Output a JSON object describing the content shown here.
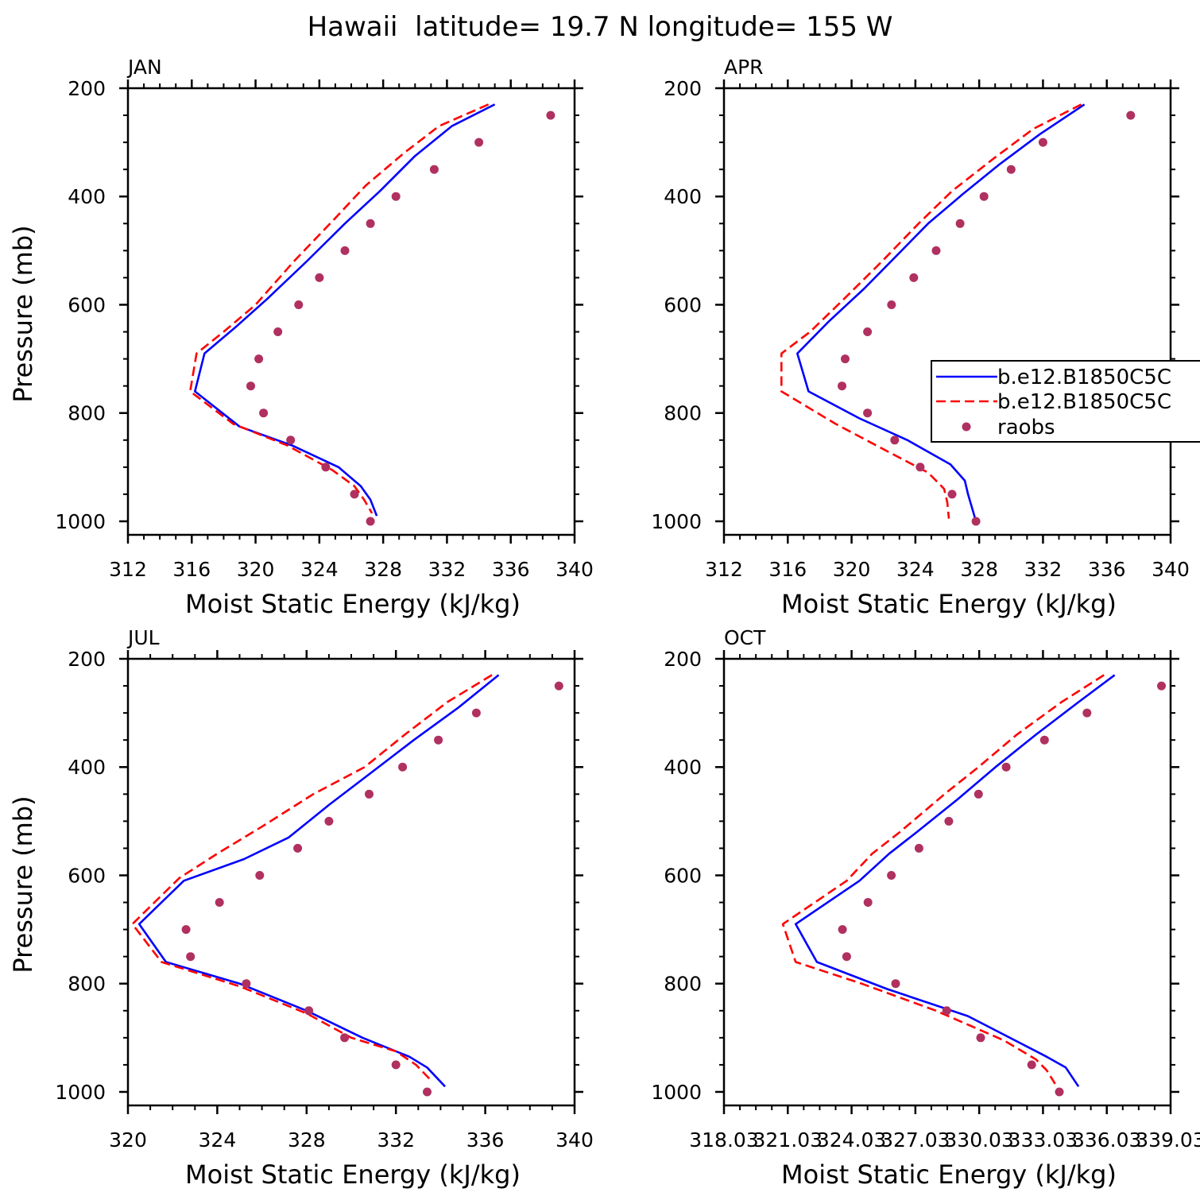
{
  "title": "Hawaii  latitude= 19.7 N longitude= 155 W",
  "colors": {
    "series1": "#0000ff",
    "series2": "#ff0000",
    "raobs": "#b03060"
  },
  "legend": {
    "location": "right edge of APR panel",
    "entries": [
      "b.e12.B1850C5C",
      "b.e12.B1850C5C",
      "raobs"
    ]
  },
  "chart_data": [
    {
      "type": "line",
      "panel": "JAN",
      "xlabel": "Moist Static Energy (kJ/kg)",
      "ylabel": "Pressure (mb)",
      "xlim": [
        312,
        340
      ],
      "ylim": [
        1025,
        200
      ],
      "y_inverted": true,
      "xticks": [
        "312",
        "316",
        "320",
        "324",
        "328",
        "332",
        "336",
        "340"
      ],
      "yticks": [
        "200",
        "400",
        "600",
        "800",
        "1000"
      ],
      "series": [
        {
          "name": "b.e12.B1850C5C",
          "style": "solid",
          "points": [
            [
              335.0,
              230
            ],
            [
              332.3,
              270
            ],
            [
              330.0,
              325
            ],
            [
              327.8,
              390
            ],
            [
              325.6,
              450
            ],
            [
              323.2,
              520
            ],
            [
              320.7,
              590
            ],
            [
              318.8,
              640
            ],
            [
              316.8,
              690
            ],
            [
              316.2,
              760
            ],
            [
              319.0,
              825
            ],
            [
              322.3,
              860
            ],
            [
              325.2,
              900
            ],
            [
              326.6,
              935
            ],
            [
              327.2,
              960
            ],
            [
              327.6,
              990
            ]
          ]
        },
        {
          "name": "b.e12.B1850C5C",
          "style": "dashed",
          "points": [
            [
              334.6,
              230
            ],
            [
              331.5,
              270
            ],
            [
              329.3,
              320
            ],
            [
              326.9,
              380
            ],
            [
              325.0,
              440
            ],
            [
              322.4,
              520
            ],
            [
              320.0,
              600
            ],
            [
              318.0,
              650
            ],
            [
              316.3,
              690
            ],
            [
              315.9,
              760
            ],
            [
              318.6,
              820
            ],
            [
              322.0,
              860
            ],
            [
              324.8,
              905
            ],
            [
              326.2,
              935
            ],
            [
              326.8,
              960
            ],
            [
              327.3,
              985
            ]
          ]
        },
        {
          "name": "raobs",
          "style": "dots",
          "points": [
            [
              338.5,
              250
            ],
            [
              334.0,
              300
            ],
            [
              331.2,
              350
            ],
            [
              328.8,
              400
            ],
            [
              327.2,
              450
            ],
            [
              325.6,
              500
            ],
            [
              324.0,
              550
            ],
            [
              322.7,
              600
            ],
            [
              321.4,
              650
            ],
            [
              320.2,
              700
            ],
            [
              319.7,
              750
            ],
            [
              320.5,
              800
            ],
            [
              322.2,
              850
            ],
            [
              324.4,
              900
            ],
            [
              326.2,
              950
            ],
            [
              327.2,
              1000
            ]
          ]
        }
      ]
    },
    {
      "type": "line",
      "panel": "APR",
      "xlabel": "Moist Static Energy (kJ/kg)",
      "ylabel": "",
      "xlim": [
        312,
        340
      ],
      "ylim": [
        1025,
        200
      ],
      "y_inverted": true,
      "xticks": [
        "312",
        "316",
        "320",
        "324",
        "328",
        "332",
        "336",
        "340"
      ],
      "yticks": [
        "200",
        "400",
        "600",
        "800",
        "1000"
      ],
      "series": [
        {
          "name": "b.e12.B1850C5C",
          "style": "solid",
          "points": [
            [
              334.6,
              230
            ],
            [
              331.8,
              285
            ],
            [
              329.3,
              340
            ],
            [
              327.0,
              395
            ],
            [
              324.8,
              450
            ],
            [
              322.8,
              510
            ],
            [
              320.8,
              570
            ],
            [
              318.6,
              630
            ],
            [
              316.6,
              690
            ],
            [
              317.3,
              760
            ],
            [
              320.5,
              810
            ],
            [
              323.5,
              850
            ],
            [
              326.2,
              895
            ],
            [
              327.1,
              925
            ],
            [
              327.3,
              950
            ],
            [
              327.8,
              1000
            ]
          ]
        },
        {
          "name": "b.e12.B1850C5C",
          "style": "dashed",
          "points": [
            [
              334.4,
              230
            ],
            [
              331.4,
              275
            ],
            [
              328.9,
              330
            ],
            [
              326.3,
              390
            ],
            [
              324.2,
              450
            ],
            [
              321.9,
              520
            ],
            [
              319.5,
              590
            ],
            [
              317.4,
              650
            ],
            [
              315.6,
              690
            ],
            [
              315.6,
              760
            ],
            [
              319.0,
              820
            ],
            [
              322.2,
              870
            ],
            [
              324.8,
              910
            ],
            [
              325.8,
              940
            ],
            [
              326.0,
              965
            ],
            [
              326.1,
              995
            ]
          ]
        },
        {
          "name": "raobs",
          "style": "dots",
          "points": [
            [
              337.5,
              250
            ],
            [
              332.0,
              300
            ],
            [
              330.0,
              350
            ],
            [
              328.3,
              400
            ],
            [
              326.8,
              450
            ],
            [
              325.3,
              500
            ],
            [
              323.9,
              550
            ],
            [
              322.5,
              600
            ],
            [
              321.0,
              650
            ],
            [
              319.6,
              700
            ],
            [
              319.4,
              750
            ],
            [
              321.0,
              800
            ],
            [
              322.7,
              850
            ],
            [
              324.3,
              900
            ],
            [
              326.3,
              950
            ],
            [
              327.8,
              1000
            ]
          ]
        }
      ]
    },
    {
      "type": "line",
      "panel": "JUL",
      "xlabel": "Moist Static Energy (kJ/kg)",
      "ylabel": "Pressure (mb)",
      "xlim": [
        320,
        340
      ],
      "ylim": [
        1025,
        200
      ],
      "y_inverted": true,
      "xticks": [
        "320",
        "324",
        "328",
        "332",
        "336",
        "340"
      ],
      "yticks": [
        "200",
        "400",
        "600",
        "800",
        "1000"
      ],
      "series": [
        {
          "name": "b.e12.B1850C5C",
          "style": "solid",
          "points": [
            [
              336.6,
              230
            ],
            [
              334.8,
              290
            ],
            [
              332.8,
              350
            ],
            [
              330.9,
              410
            ],
            [
              329.0,
              470
            ],
            [
              327.2,
              530
            ],
            [
              325.2,
              570
            ],
            [
              322.5,
              610
            ],
            [
              320.5,
              690
            ],
            [
              321.7,
              760
            ],
            [
              325.0,
              800
            ],
            [
              328.0,
              850
            ],
            [
              330.5,
              900
            ],
            [
              332.6,
              935
            ],
            [
              333.4,
              955
            ],
            [
              334.2,
              990
            ]
          ]
        },
        {
          "name": "b.e12.B1850C5C",
          "style": "dashed",
          "points": [
            [
              336.3,
              230
            ],
            [
              334.3,
              280
            ],
            [
              332.4,
              340
            ],
            [
              330.6,
              400
            ],
            [
              328.3,
              450
            ],
            [
              326.0,
              510
            ],
            [
              324.0,
              560
            ],
            [
              322.3,
              605
            ],
            [
              320.2,
              690
            ],
            [
              321.5,
              760
            ],
            [
              325.0,
              805
            ],
            [
              328.0,
              855
            ],
            [
              330.0,
              900
            ],
            [
              332.0,
              925
            ],
            [
              332.9,
              950
            ],
            [
              333.6,
              980
            ]
          ]
        },
        {
          "name": "raobs",
          "style": "dots",
          "points": [
            [
              339.3,
              250
            ],
            [
              335.6,
              300
            ],
            [
              333.9,
              350
            ],
            [
              332.3,
              400
            ],
            [
              330.8,
              450
            ],
            [
              329.0,
              500
            ],
            [
              327.6,
              550
            ],
            [
              325.9,
              600
            ],
            [
              324.1,
              650
            ],
            [
              322.6,
              700
            ],
            [
              322.8,
              750
            ],
            [
              325.3,
              800
            ],
            [
              328.1,
              850
            ],
            [
              329.7,
              900
            ],
            [
              332.0,
              950
            ],
            [
              333.4,
              1000
            ]
          ]
        }
      ]
    },
    {
      "type": "line",
      "panel": "OCT",
      "xlabel": "Moist Static Energy (kJ/kg)",
      "ylabel": "",
      "xlim": [
        318.03,
        339.03
      ],
      "ylim": [
        1025,
        200
      ],
      "y_inverted": true,
      "xticks": [
        "318.03",
        "321.03",
        "324.03",
        "327.03",
        "330.03",
        "333.03",
        "336.03",
        "339.03"
      ],
      "yticks": [
        "200",
        "400",
        "600",
        "800",
        "1000"
      ],
      "series": [
        {
          "name": "b.e12.B1850C5C",
          "style": "solid",
          "points": [
            [
              336.4,
              230
            ],
            [
              334.7,
              280
            ],
            [
              332.7,
              340
            ],
            [
              330.8,
              400
            ],
            [
              329.0,
              460
            ],
            [
              327.1,
              520
            ],
            [
              325.8,
              560
            ],
            [
              324.4,
              610
            ],
            [
              321.4,
              690
            ],
            [
              322.4,
              760
            ],
            [
              325.7,
              810
            ],
            [
              329.5,
              860
            ],
            [
              333.2,
              935
            ],
            [
              334.1,
              955
            ],
            [
              334.7,
              990
            ]
          ]
        },
        {
          "name": "b.e12.B1850C5C",
          "style": "dashed",
          "points": [
            [
              335.9,
              230
            ],
            [
              333.9,
              280
            ],
            [
              331.8,
              340
            ],
            [
              330.0,
              400
            ],
            [
              328.4,
              450
            ],
            [
              326.3,
              520
            ],
            [
              325.0,
              560
            ],
            [
              323.8,
              610
            ],
            [
              320.8,
              690
            ],
            [
              321.4,
              760
            ],
            [
              324.5,
              800
            ],
            [
              328.0,
              850
            ],
            [
              331.2,
              905
            ],
            [
              332.7,
              940
            ],
            [
              333.2,
              960
            ],
            [
              333.6,
              985
            ]
          ]
        },
        {
          "name": "raobs",
          "style": "dots",
          "points": [
            [
              338.6,
              250
            ],
            [
              335.1,
              300
            ],
            [
              333.1,
              350
            ],
            [
              331.3,
              400
            ],
            [
              330.0,
              450
            ],
            [
              328.6,
              500
            ],
            [
              327.2,
              550
            ],
            [
              325.9,
              600
            ],
            [
              324.8,
              650
            ],
            [
              323.6,
              700
            ],
            [
              323.8,
              750
            ],
            [
              326.1,
              800
            ],
            [
              328.5,
              850
            ],
            [
              330.1,
              900
            ],
            [
              332.5,
              950
            ],
            [
              333.8,
              1000
            ]
          ]
        }
      ]
    }
  ]
}
